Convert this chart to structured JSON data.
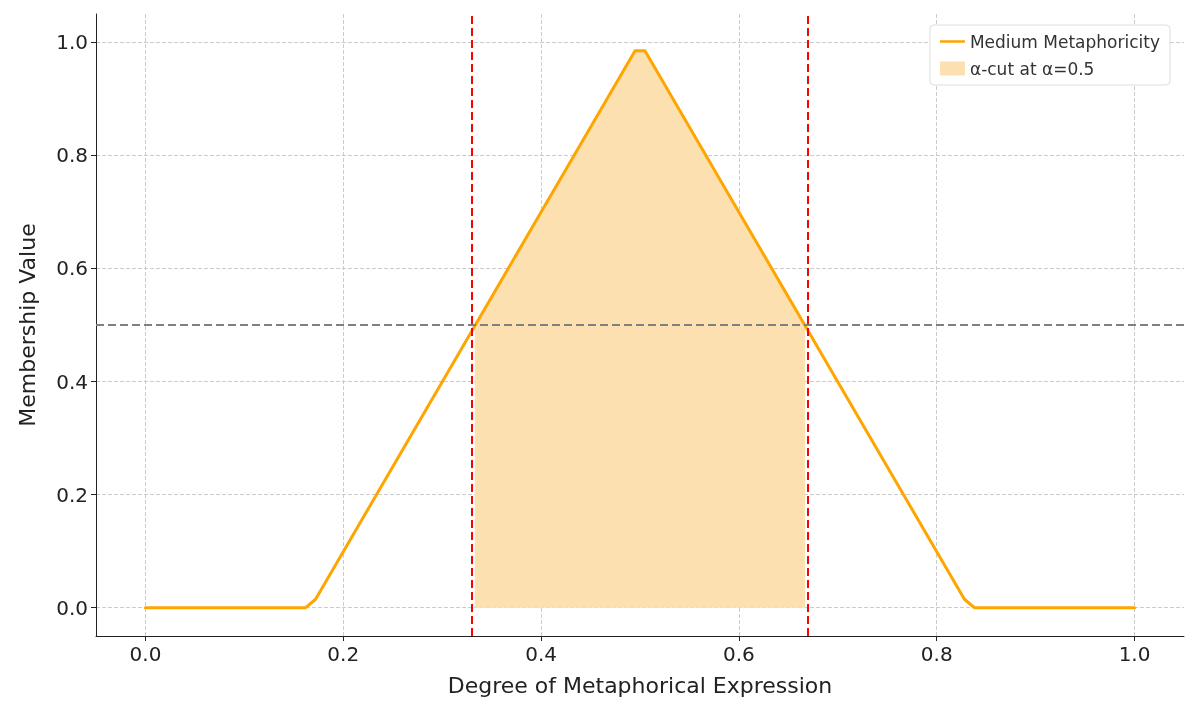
{
  "chart_data": {
    "type": "line",
    "xlabel": "Degree of Metaphorical Expression",
    "ylabel": "Membership Value",
    "xlim": [
      -0.05,
      1.05
    ],
    "ylim": [
      -0.05,
      1.05
    ],
    "xticks": [
      {
        "value": 0,
        "label": "0.0"
      },
      {
        "value": 0.2,
        "label": "0.2"
      },
      {
        "value": 0.4,
        "label": "0.4"
      },
      {
        "value": 0.6,
        "label": "0.6"
      },
      {
        "value": 0.8,
        "label": "0.8"
      },
      {
        "value": 1,
        "label": "1.0"
      }
    ],
    "yticks": [
      {
        "value": 0,
        "label": "0.0"
      },
      {
        "value": 0.2,
        "label": "0.2"
      },
      {
        "value": 0.4,
        "label": "0.4"
      },
      {
        "value": 0.6,
        "label": "0.6"
      },
      {
        "value": 0.8,
        "label": "0.8"
      },
      {
        "value": 1,
        "label": "1.0"
      }
    ],
    "grid": true,
    "legend": "top right",
    "marker": "none",
    "series": [
      {
        "name": "Medium Metaphoricity",
        "type": "line",
        "color": "#ffa500",
        "x": [
          0,
          0.162,
          0.172,
          0.495,
          0.505,
          0.828,
          0.838,
          1.0
        ],
        "values": [
          0,
          0,
          0.015,
          0.985,
          0.985,
          0.015,
          0,
          0
        ]
      },
      {
        "name": "α-cut at α=0.5",
        "type": "area",
        "color": "#fde0b0",
        "x": [
          0.333,
          0.495,
          0.505,
          0.667
        ],
        "values": [
          0.5,
          0.985,
          0.985,
          0.5
        ]
      }
    ],
    "ref_lines": [
      {
        "axis": "x",
        "value": 0.333,
        "color": "#ff0000",
        "line_style": "dashed"
      },
      {
        "axis": "x",
        "value": 0.667,
        "color": "#ff0000",
        "line_style": "dashed"
      },
      {
        "axis": "y",
        "value": 0.5,
        "color": "#808080",
        "line_style": "dashed"
      }
    ]
  }
}
